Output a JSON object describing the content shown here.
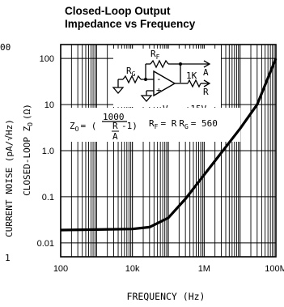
{
  "chart_data": {
    "type": "line",
    "title_lines": [
      "Closed-Loop Output",
      "Impedance vs Frequency"
    ],
    "xlabel": "FREQUENCY (Hz)",
    "ylabel": "CLOSED-LOOP Z",
    "ylabel_sub": "O",
    "ylabel_unit": "(Ω)",
    "xscale": "log",
    "yscale": "log",
    "xlim": [
      100,
      100000000
    ],
    "ylim": [
      0.005,
      200
    ],
    "x_ticks": [
      {
        "value": 100,
        "label": "100"
      },
      {
        "value": 10000,
        "label": "10k"
      },
      {
        "value": 1000000,
        "label": "1M"
      },
      {
        "value": 100000000,
        "label": "100M"
      }
    ],
    "y_ticks": [
      {
        "value": 100,
        "label": "100"
      },
      {
        "value": 10,
        "label": "10"
      },
      {
        "value": 1,
        "label": "1.0"
      },
      {
        "value": 0.1,
        "label": "0.1"
      },
      {
        "value": 0.01,
        "label": "0.01"
      }
    ],
    "grid": true,
    "series": [
      {
        "x": [
          100,
          1000,
          10000,
          30000,
          100000,
          300000,
          1000000,
          3000000,
          10000000,
          30000000,
          100000000
        ],
        "y": [
          0.019,
          0.0195,
          0.02,
          0.022,
          0.035,
          0.09,
          0.3,
          0.9,
          3,
          10,
          100
        ]
      }
    ],
    "annotations": {
      "vs": "V",
      "vs_sub": "S",
      "vs_value": "= ±15V",
      "rf": "R",
      "rf_sub": "F",
      "rf_value": "= R",
      "rg_sub": "G",
      "rf_rg_value": "= 560",
      "formula_z": "Z",
      "formula_z_sub": "O",
      "formula_eq": "= (",
      "formula_num": "1000",
      "formula_frac_top": "R",
      "formula_frac_bottom": "A",
      "formula_tail": "-1)",
      "formula_rf": "R",
      "formula_rf_sub": "F",
      "schematic_rg": "R",
      "schematic_rg_sub": "G",
      "schematic_rf": "R",
      "schematic_rf_sub": "F",
      "schematic_1k": "1K",
      "schematic_a": "A",
      "schematic_r": "R",
      "opamp_minus": "-",
      "opamp_plus": "+"
    }
  },
  "cropped_neighbor": {
    "ylabel": "CURRENT NOISE (pA/√Hz)",
    "tick_top": "00",
    "tick_bottom": "1"
  }
}
